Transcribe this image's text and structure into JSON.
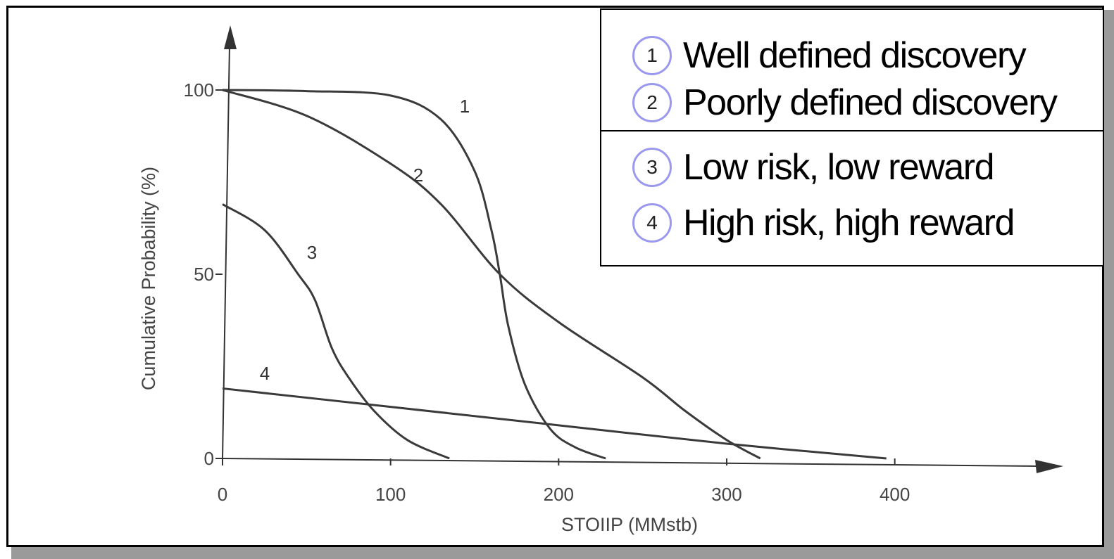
{
  "chart_data": {
    "type": "line",
    "xlabel": "STOIIP (MMstb)",
    "ylabel": "Cumulative Probability (%)",
    "xlim": [
      0,
      450
    ],
    "ylim": [
      0,
      100
    ],
    "x_ticks": [
      "0",
      "100",
      "200",
      "300",
      "400"
    ],
    "y_ticks": [
      "0",
      "50",
      "100"
    ],
    "grid": false,
    "series": [
      {
        "name": "1",
        "x": [
          0,
          50,
          100,
          130,
          150,
          160,
          165,
          170,
          180,
          195,
          210,
          228
        ],
        "y": [
          100,
          99.7,
          98.5,
          92,
          78,
          62,
          50,
          36,
          20,
          8,
          3,
          0
        ]
      },
      {
        "name": "2",
        "x": [
          0,
          50,
          100,
          130,
          165,
          200,
          250,
          275,
          300,
          320
        ],
        "y": [
          100,
          93,
          80,
          69,
          50,
          37,
          22,
          13,
          5,
          0
        ]
      },
      {
        "name": "3",
        "x": [
          0,
          25,
          45,
          55,
          65,
          75,
          90,
          110,
          135
        ],
        "y": [
          69,
          62,
          50,
          43,
          30,
          22,
          13,
          5,
          0
        ]
      },
      {
        "name": "4",
        "x": [
          0,
          100,
          200,
          300,
          395
        ],
        "y": [
          19,
          14,
          9,
          4,
          0
        ]
      }
    ]
  },
  "legend": {
    "items": [
      {
        "num": "1",
        "label": "Well defined discovery"
      },
      {
        "num": "2",
        "label": "Poorly defined discovery"
      },
      {
        "num": "3",
        "label": "Low risk, low reward"
      },
      {
        "num": "4",
        "label": "High risk, high reward"
      }
    ]
  }
}
